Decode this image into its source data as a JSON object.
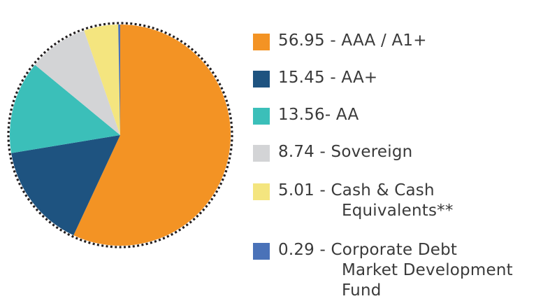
{
  "chart_data": {
    "type": "pie",
    "title": "",
    "slices": [
      {
        "value": 56.95,
        "value_label": "56.95",
        "separator": " - ",
        "label_lines": [
          "AAA / A1+"
        ],
        "color": "#F39324"
      },
      {
        "value": 15.45,
        "value_label": "15.45",
        "separator": " - ",
        "label_lines": [
          "AA+"
        ],
        "color": "#1E5380"
      },
      {
        "value": 13.56,
        "value_label": "13.56",
        "separator": "- ",
        "label_lines": [
          "AA"
        ],
        "color": "#3BBFB9"
      },
      {
        "value": 8.74,
        "value_label": "8.74",
        "separator": " - ",
        "label_lines": [
          "Sovereign"
        ],
        "color": "#D3D4D6"
      },
      {
        "value": 5.01,
        "value_label": "5.01",
        "separator": " - ",
        "label_lines": [
          "Cash & Cash",
          "Equivalents**"
        ],
        "color": "#F4E57F"
      },
      {
        "value": 0.29,
        "value_label": "0.29",
        "separator": " - ",
        "label_lines": [
          "Corporate Debt",
          "Market Development",
          "Fund"
        ],
        "color": "#4A72B8"
      }
    ],
    "start_angle_deg": 0,
    "direction": "clockwise",
    "outline": "dotted",
    "legend_position": "right"
  }
}
